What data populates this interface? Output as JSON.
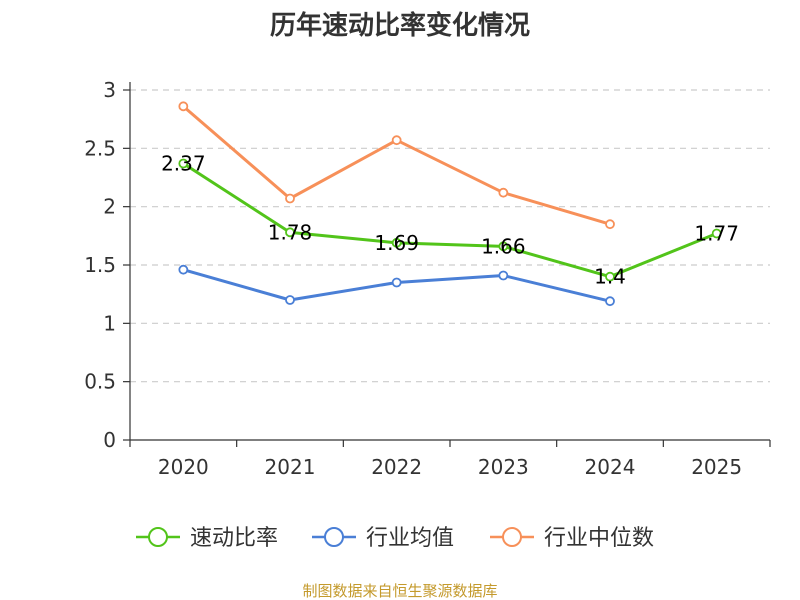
{
  "chart_data": {
    "type": "line",
    "title": "历年速动比率变化情况",
    "categories": [
      "2020",
      "2021",
      "2022",
      "2023",
      "2024",
      "2025"
    ],
    "ylim": [
      0,
      3
    ],
    "yticks": [
      "0",
      "0.5",
      "1",
      "1.5",
      "2",
      "2.5",
      "3"
    ],
    "ytick_values": [
      0,
      0.5,
      1,
      1.5,
      2,
      2.5,
      3
    ],
    "grid": true,
    "legend_position": "bottom",
    "series": [
      {
        "name": "速动比率",
        "color": "#52c41a",
        "values": [
          2.37,
          1.78,
          1.69,
          1.66,
          1.4,
          1.77
        ],
        "labels": [
          "2.37",
          "1.78",
          "1.69",
          "1.66",
          "1.4",
          "1.77"
        ]
      },
      {
        "name": "行业均值",
        "color": "#4a7fd6",
        "values": [
          1.46,
          1.2,
          1.35,
          1.41,
          1.19,
          null
        ]
      },
      {
        "name": "行业中位数",
        "color": "#f79059",
        "values": [
          2.86,
          2.07,
          2.57,
          2.12,
          1.85,
          null
        ]
      }
    ]
  },
  "source": {
    "text": "制图数据来自恒生聚源数据库",
    "color": "#c49a2c"
  }
}
